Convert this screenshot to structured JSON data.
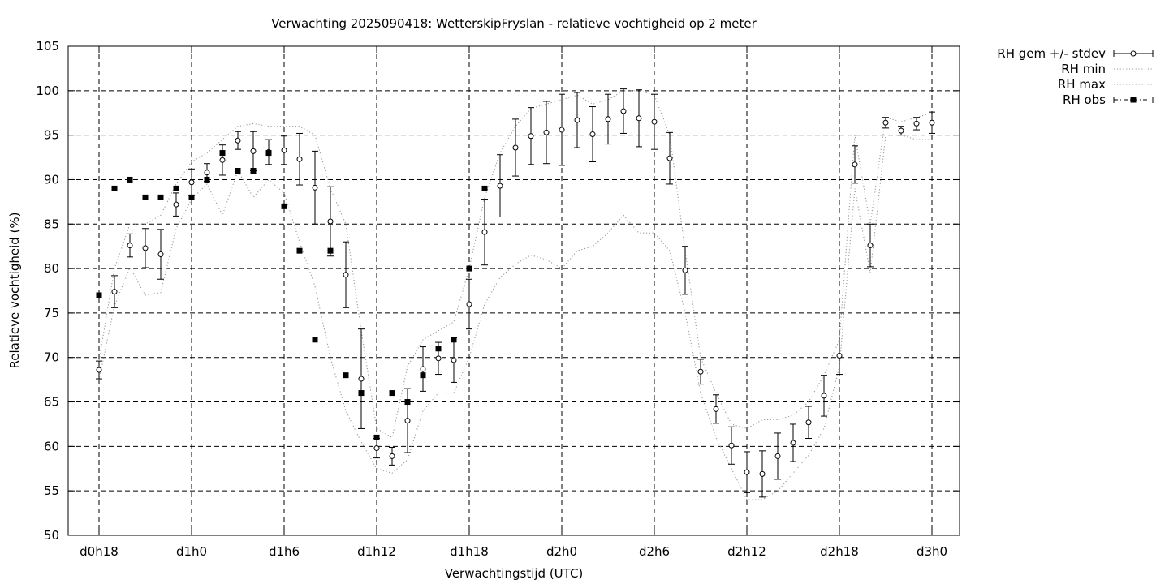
{
  "chart_data": {
    "type": "scatter",
    "title": "Verwachting 2025090418: WetterskipFryslan - relatieve vochtigheid op 2 meter",
    "xlabel": "Verwachtingstijd (UTC)",
    "ylabel": "Relatieve vochtigheid (%)",
    "ylim": [
      50,
      105
    ],
    "yticks": [
      50,
      55,
      60,
      65,
      70,
      75,
      80,
      85,
      90,
      95,
      100,
      105
    ],
    "xlim": [
      -2,
      56
    ],
    "xticks": [
      {
        "x": 0,
        "label": "d0h18"
      },
      {
        "x": 6,
        "label": "d1h0"
      },
      {
        "x": 12,
        "label": "d1h6"
      },
      {
        "x": 18,
        "label": "d1h12"
      },
      {
        "x": 24,
        "label": "d1h18"
      },
      {
        "x": 30,
        "label": "d2h0"
      },
      {
        "x": 36,
        "label": "d2h6"
      },
      {
        "x": 42,
        "label": "d2h12"
      },
      {
        "x": 48,
        "label": "d2h18"
      },
      {
        "x": 54,
        "label": "d3h0"
      }
    ],
    "x_unit_note": "",
    "grid": true,
    "legend_position": "outside-top-right",
    "series": [
      {
        "name": "RH gem +/- stdev",
        "style": "points-errorbars",
        "color": "#000000",
        "x": [
          0,
          1,
          2,
          3,
          4,
          5,
          6,
          7,
          8,
          9,
          10,
          11,
          12,
          13,
          14,
          15,
          16,
          17,
          18,
          19,
          20,
          21,
          22,
          23,
          24,
          25,
          26,
          27,
          28,
          29,
          30,
          31,
          32,
          33,
          34,
          35,
          36,
          37,
          38,
          39,
          40,
          41,
          42,
          43,
          44,
          45,
          46,
          47,
          48,
          49,
          50,
          51,
          52,
          53,
          54
        ],
        "mean": [
          68.6,
          77.4,
          82.6,
          82.3,
          81.6,
          87.2,
          89.7,
          90.8,
          92.2,
          94.4,
          93.2,
          93.1,
          93.3,
          92.3,
          89.1,
          85.3,
          79.3,
          67.6,
          59.8,
          58.9,
          62.9,
          68.7,
          69.9,
          69.7,
          76.0,
          84.1,
          89.3,
          93.6,
          94.9,
          95.3,
          95.6,
          96.7,
          95.1,
          96.8,
          97.7,
          96.9,
          96.5,
          92.4,
          79.8,
          68.4,
          64.2,
          60.1,
          57.1,
          56.9,
          58.9,
          60.4,
          62.7,
          65.7,
          70.2,
          91.7,
          82.6,
          96.4,
          95.5,
          96.3,
          96.4
        ],
        "sd": [
          1.0,
          1.8,
          1.3,
          2.2,
          2.8,
          1.3,
          1.5,
          1.0,
          1.7,
          1.0,
          2.2,
          1.4,
          1.6,
          2.9,
          4.1,
          3.9,
          3.7,
          5.6,
          1.1,
          1.0,
          3.6,
          2.5,
          1.8,
          2.5,
          2.8,
          3.7,
          3.5,
          3.2,
          3.2,
          3.5,
          4.0,
          3.1,
          3.1,
          2.8,
          2.5,
          3.2,
          3.1,
          2.9,
          2.7,
          1.4,
          1.6,
          2.1,
          2.3,
          2.6,
          2.6,
          2.1,
          1.8,
          2.3,
          2.1,
          2.1,
          2.4,
          0.6,
          0.5,
          0.7,
          1.2
        ]
      },
      {
        "name": "RH min",
        "style": "dotted-line",
        "color": "#9a9a9a",
        "x": [
          0,
          1,
          2,
          3,
          4,
          5,
          6,
          7,
          8,
          9,
          10,
          11,
          12,
          13,
          14,
          15,
          16,
          17,
          18,
          19,
          20,
          21,
          22,
          23,
          24,
          25,
          26,
          27,
          28,
          29,
          30,
          31,
          32,
          33,
          34,
          35,
          36,
          37,
          38,
          39,
          40,
          41,
          42,
          43,
          44,
          45,
          46,
          47,
          48,
          49,
          50,
          51,
          52,
          53,
          54
        ],
        "values": [
          67.5,
          75.8,
          80.1,
          77.0,
          77.3,
          84.5,
          87.8,
          89.5,
          86.0,
          91.0,
          88.0,
          90.0,
          88.5,
          83.0,
          78.0,
          70.0,
          64.0,
          60.5,
          57.5,
          57.0,
          58.5,
          64.0,
          66.0,
          66.0,
          70.0,
          76.0,
          79.0,
          80.5,
          81.5,
          81.0,
          80.0,
          82.0,
          82.5,
          84.0,
          86.0,
          84.0,
          84.0,
          82.0,
          75.0,
          66.0,
          61.0,
          57.5,
          54.0,
          54.0,
          55.0,
          57.0,
          59.0,
          62.0,
          69.0,
          89.0,
          79.5,
          95.0,
          95.0,
          94.5,
          94.5
        ]
      },
      {
        "name": "RH max",
        "style": "dotted-line",
        "color": "#9a9a9a",
        "x": [
          0,
          1,
          2,
          3,
          4,
          5,
          6,
          7,
          8,
          9,
          10,
          11,
          12,
          13,
          14,
          15,
          16,
          17,
          18,
          19,
          20,
          21,
          22,
          23,
          24,
          25,
          26,
          27,
          28,
          29,
          30,
          31,
          32,
          33,
          34,
          35,
          36,
          37,
          38,
          39,
          40,
          41,
          42,
          43,
          44,
          45,
          46,
          47,
          48,
          49,
          50,
          51,
          52,
          53,
          54
        ],
        "values": [
          69.7,
          80.0,
          85.0,
          85.0,
          86.0,
          89.5,
          92.0,
          93.0,
          94.5,
          96.0,
          96.3,
          96.0,
          96.0,
          96.0,
          95.0,
          89.0,
          85.0,
          73.0,
          62.0,
          61.0,
          69.0,
          72.0,
          73.0,
          74.0,
          80.0,
          88.0,
          93.0,
          96.0,
          98.0,
          98.5,
          99.0,
          99.5,
          98.5,
          99.0,
          100.0,
          100.0,
          99.5,
          95.0,
          82.0,
          70.0,
          66.0,
          62.5,
          62.0,
          63.0,
          63.0,
          63.5,
          65.0,
          68.0,
          72.0,
          95.0,
          85.0,
          97.0,
          96.5,
          97.0,
          97.5
        ]
      },
      {
        "name": "RH obs",
        "style": "filled-squares",
        "color": "#000000",
        "x": [
          0,
          1,
          2,
          3,
          4,
          5,
          6,
          7,
          8,
          9,
          10,
          11,
          12,
          13,
          14,
          15,
          16,
          17,
          18,
          19,
          20,
          21,
          22,
          23,
          24,
          25
        ],
        "values": [
          77,
          89,
          90,
          88,
          88,
          89,
          88,
          90,
          93,
          91,
          91,
          93,
          87,
          82,
          72,
          82,
          68,
          66,
          61,
          66,
          65,
          68,
          71,
          72,
          80,
          89
        ]
      }
    ]
  }
}
